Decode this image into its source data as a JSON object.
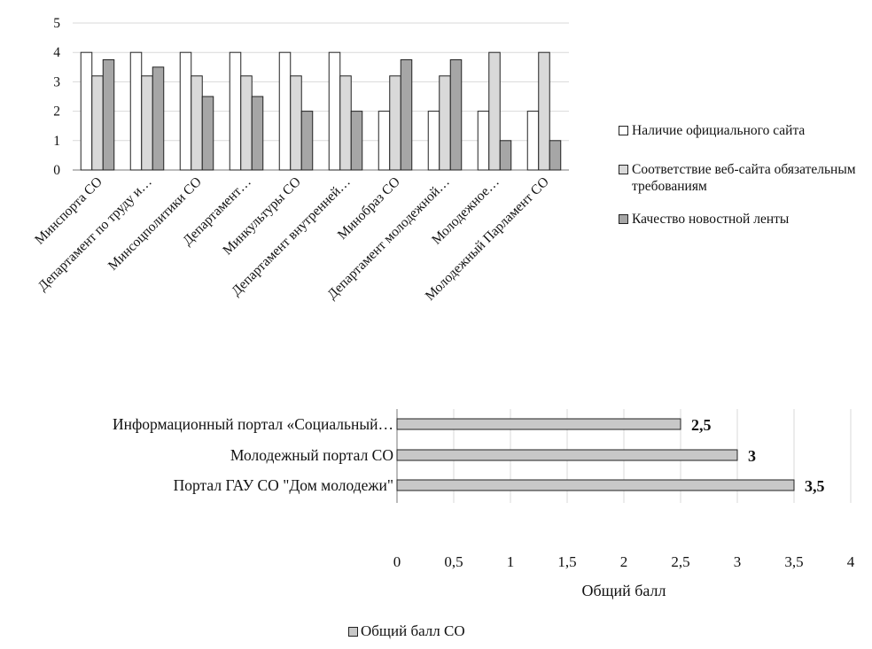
{
  "chart_data": [
    {
      "type": "bar",
      "categories": [
        "Минспорта СО",
        "Департамент по труду и…",
        "Минсоцполитики СО",
        "Департамент…",
        "Минкультуры СО",
        "Департамент внутренней…",
        "Минобраз СО",
        "Департамент молодежной…",
        "Молодежное…",
        "Молодежный Парламент СО"
      ],
      "series": [
        {
          "name": "Наличие официального сайта",
          "color": "#ffffff",
          "values": [
            4,
            4,
            4,
            4,
            4,
            4,
            2,
            2,
            2,
            2
          ]
        },
        {
          "name": "Соответствие веб-сайта обязательным требованиям",
          "color": "#d9d9d9",
          "values": [
            3.2,
            3.2,
            3.2,
            3.2,
            3.2,
            3.2,
            3.2,
            3.2,
            4,
            4
          ]
        },
        {
          "name": "Качество новостной ленты",
          "color": "#a6a6a6",
          "values": [
            3.75,
            3.5,
            2.5,
            2.5,
            2,
            2,
            3.75,
            3.75,
            1,
            1
          ]
        }
      ],
      "yticks": [
        "0",
        "1",
        "2",
        "3",
        "4",
        "5"
      ],
      "ylim": [
        0,
        5
      ],
      "grid": true,
      "legend": "right"
    },
    {
      "type": "bar",
      "orientation": "horizontal",
      "categories": [
        "Информационный портал «Социальный…",
        "Молодежный портал СО",
        "Портал ГАУ СО \"Дом молодежи\""
      ],
      "series": [
        {
          "name": "Общий балл СО",
          "color": "#c8c8c8",
          "values": [
            2.5,
            3,
            3.5
          ]
        }
      ],
      "data_labels": [
        "2,5",
        "3",
        "3,5"
      ],
      "xticks": [
        "0",
        "0,5",
        "1",
        "1,5",
        "2",
        "2,5",
        "3",
        "3,5",
        "4"
      ],
      "xlim": [
        0,
        4
      ],
      "xlabel": "Общий балл",
      "grid": true,
      "legend": "bottom"
    }
  ]
}
